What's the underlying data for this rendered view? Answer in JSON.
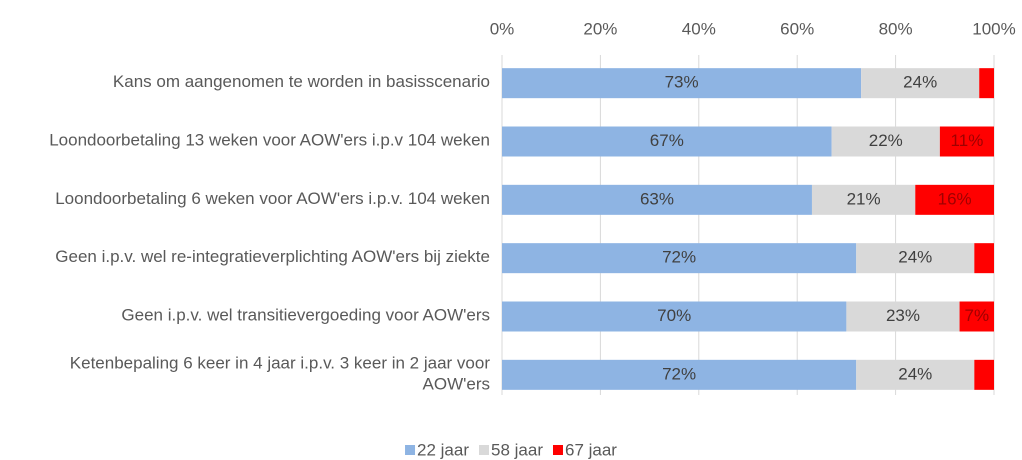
{
  "chart_data": {
    "type": "bar",
    "orientation": "horizontal",
    "stacked": true,
    "categories": [
      "Kans om aangenomen te worden in basisscenario",
      "Loondoorbetaling 13 weken voor AOW'ers i.p.v 104 weken",
      "Loondoorbetaling 6 weken voor AOW'ers i.p.v. 104 weken",
      "Geen i.p.v. wel re-integratieverplichting AOW'ers bij ziekte",
      "Geen i.p.v. wel transitievergoeding voor AOW'ers",
      "Ketenbepaling 6 keer in 4 jaar i.p.v. 3 keer in 2 jaar voor AOW'ers"
    ],
    "series": [
      {
        "name": "22 jaar",
        "color": "#8eb4e3",
        "values": [
          73,
          67,
          63,
          72,
          70,
          72
        ],
        "value_labels": [
          "73%",
          "67%",
          "63%",
          "72%",
          "70%",
          "72%"
        ]
      },
      {
        "name": "58 jaar",
        "color": "#d9d9d9",
        "values": [
          24,
          22,
          21,
          24,
          23,
          24
        ],
        "value_labels": [
          "24%",
          "22%",
          "21%",
          "24%",
          "23%",
          "24%"
        ]
      },
      {
        "name": "67 jaar",
        "color": "#ff0000",
        "values": [
          3,
          11,
          16,
          4,
          7,
          4
        ],
        "value_labels": [
          null,
          "11%",
          "16%",
          null,
          "7%",
          null
        ]
      }
    ],
    "xlim": [
      0,
      100
    ],
    "xticks": [
      {
        "value": 0,
        "label": "0%"
      },
      {
        "value": 20,
        "label": "20%"
      },
      {
        "value": 40,
        "label": "40%"
      },
      {
        "value": 60,
        "label": "60%"
      },
      {
        "value": 80,
        "label": "80%"
      },
      {
        "value": 100,
        "label": "100%"
      }
    ],
    "grid": true,
    "legend": "bottom"
  }
}
